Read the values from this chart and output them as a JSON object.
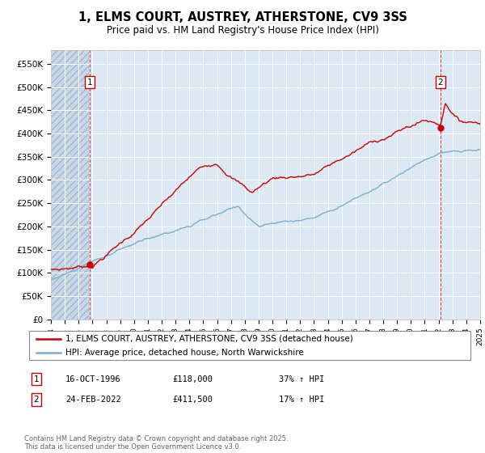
{
  "title": "1, ELMS COURT, AUSTREY, ATHERSTONE, CV9 3SS",
  "subtitle": "Price paid vs. HM Land Registry's House Price Index (HPI)",
  "bg_color": "#dce9f5",
  "red_line_color": "#cc0000",
  "blue_line_color": "#7aadcf",
  "sale1_date": "16-OCT-1996",
  "sale1_price": 118000,
  "sale1_hpi": "37% ↑ HPI",
  "sale2_date": "24-FEB-2022",
  "sale2_price": 411500,
  "sale2_hpi": "17% ↑ HPI",
  "legend1": "1, ELMS COURT, AUSTREY, ATHERSTONE, CV9 3SS (detached house)",
  "legend2": "HPI: Average price, detached house, North Warwickshire",
  "footnote": "Contains HM Land Registry data © Crown copyright and database right 2025.\nThis data is licensed under the Open Government Licence v3.0.",
  "ylim": [
    0,
    580000
  ],
  "yticks": [
    0,
    50000,
    100000,
    150000,
    200000,
    250000,
    300000,
    350000,
    400000,
    450000,
    500000,
    550000
  ],
  "x_start_year": 1994,
  "x_end_year": 2025,
  "sale1_x": 1996.79,
  "sale2_x": 2022.12
}
